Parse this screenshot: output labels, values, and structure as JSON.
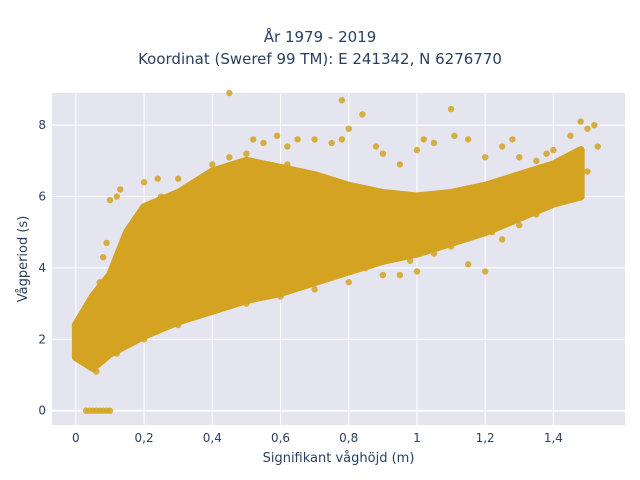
{
  "chart_data": {
    "type": "scatter",
    "title_line1": "År 1979 - 2019",
    "title_line2": "Koordinat (Sweref 99 TM): E 241342, N 6276770",
    "xlabel": "Signifikant våghöjd (m)",
    "ylabel": "Vågperiod (s)",
    "xlim": [
      -0.07,
      1.61
    ],
    "ylim": [
      -0.4,
      8.9
    ],
    "x_ticks": [
      0,
      0.2,
      0.4,
      0.6,
      0.8,
      1.0,
      1.2,
      1.4
    ],
    "x_tick_labels": [
      "0",
      "0,2",
      "0,4",
      "0,6",
      "0,8",
      "1",
      "1,2",
      "1,4"
    ],
    "y_ticks": [
      0,
      2,
      4,
      6,
      8
    ],
    "y_tick_labels": [
      "0",
      "2",
      "4",
      "6",
      "8"
    ],
    "grid": true,
    "marker_color": "#d4a321",
    "plot_bg": "#e5e5f0",
    "points": [
      [
        0.03,
        0.0
      ],
      [
        0.04,
        0.0
      ],
      [
        0.05,
        0.0
      ],
      [
        0.06,
        0.0
      ],
      [
        0.07,
        0.0
      ],
      [
        0.08,
        0.0
      ],
      [
        0.09,
        0.0
      ],
      [
        0.1,
        0.0
      ],
      [
        0.0,
        1.6
      ],
      [
        0.03,
        1.9
      ],
      [
        0.06,
        1.1
      ],
      [
        0.07,
        3.6
      ],
      [
        0.08,
        4.3
      ],
      [
        0.09,
        4.7
      ],
      [
        0.1,
        5.9
      ],
      [
        0.12,
        6.0
      ],
      [
        0.13,
        6.2
      ],
      [
        0.17,
        5.0
      ],
      [
        0.2,
        6.4
      ],
      [
        0.25,
        6.0
      ],
      [
        0.3,
        6.5
      ],
      [
        0.35,
        6.3
      ],
      [
        0.4,
        6.9
      ],
      [
        0.45,
        7.1
      ],
      [
        0.5,
        7.2
      ],
      [
        0.52,
        7.6
      ],
      [
        0.55,
        7.5
      ],
      [
        0.59,
        7.7
      ],
      [
        0.62,
        7.4
      ],
      [
        0.65,
        7.6
      ],
      [
        0.7,
        7.6
      ],
      [
        0.75,
        7.5
      ],
      [
        0.78,
        7.6
      ],
      [
        0.8,
        7.9
      ],
      [
        0.84,
        8.3
      ],
      [
        0.88,
        7.4
      ],
      [
        0.9,
        7.2
      ],
      [
        0.95,
        6.9
      ],
      [
        1.0,
        7.3
      ],
      [
        1.02,
        7.6
      ],
      [
        1.05,
        7.5
      ],
      [
        1.1,
        8.45
      ],
      [
        1.11,
        7.7
      ],
      [
        1.15,
        7.6
      ],
      [
        1.2,
        7.1
      ],
      [
        1.25,
        7.4
      ],
      [
        1.28,
        7.6
      ],
      [
        1.3,
        7.1
      ],
      [
        1.35,
        7.0
      ],
      [
        1.38,
        7.2
      ],
      [
        1.4,
        7.3
      ],
      [
        1.45,
        7.7
      ],
      [
        1.48,
        8.1
      ],
      [
        1.5,
        7.9
      ],
      [
        1.52,
        8.0
      ],
      [
        1.53,
        7.4
      ],
      [
        1.2,
        3.9
      ],
      [
        1.15,
        4.1
      ],
      [
        1.0,
        3.9
      ],
      [
        0.95,
        3.8
      ],
      [
        0.9,
        3.8
      ],
      [
        0.85,
        4.0
      ],
      [
        0.8,
        3.6
      ],
      [
        0.7,
        3.4
      ],
      [
        0.6,
        3.2
      ],
      [
        0.5,
        3.0
      ],
      [
        0.4,
        2.8
      ],
      [
        0.3,
        2.4
      ],
      [
        0.2,
        2.0
      ],
      [
        0.12,
        1.6
      ],
      [
        0.05,
        1.2
      ],
      [
        0.78,
        8.7
      ],
      [
        0.45,
        8.9
      ],
      [
        0.24,
        6.5
      ],
      [
        0.62,
        6.9
      ],
      [
        1.3,
        5.2
      ],
      [
        1.25,
        4.8
      ],
      [
        1.22,
        5.0
      ],
      [
        1.35,
        5.5
      ],
      [
        1.42,
        5.9
      ],
      [
        1.46,
        6.2
      ],
      [
        1.5,
        6.7
      ],
      [
        1.1,
        4.6
      ],
      [
        1.05,
        4.4
      ],
      [
        0.98,
        4.2
      ],
      [
        0.92,
        4.5
      ],
      [
        0.88,
        4.3
      ],
      [
        0.76,
        4.0
      ],
      [
        0.68,
        3.9
      ],
      [
        0.55,
        3.6
      ],
      [
        0.46,
        3.4
      ],
      [
        0.38,
        3.1
      ],
      [
        0.28,
        2.9
      ],
      [
        0.18,
        2.5
      ],
      [
        0.1,
        2.2
      ]
    ]
  }
}
